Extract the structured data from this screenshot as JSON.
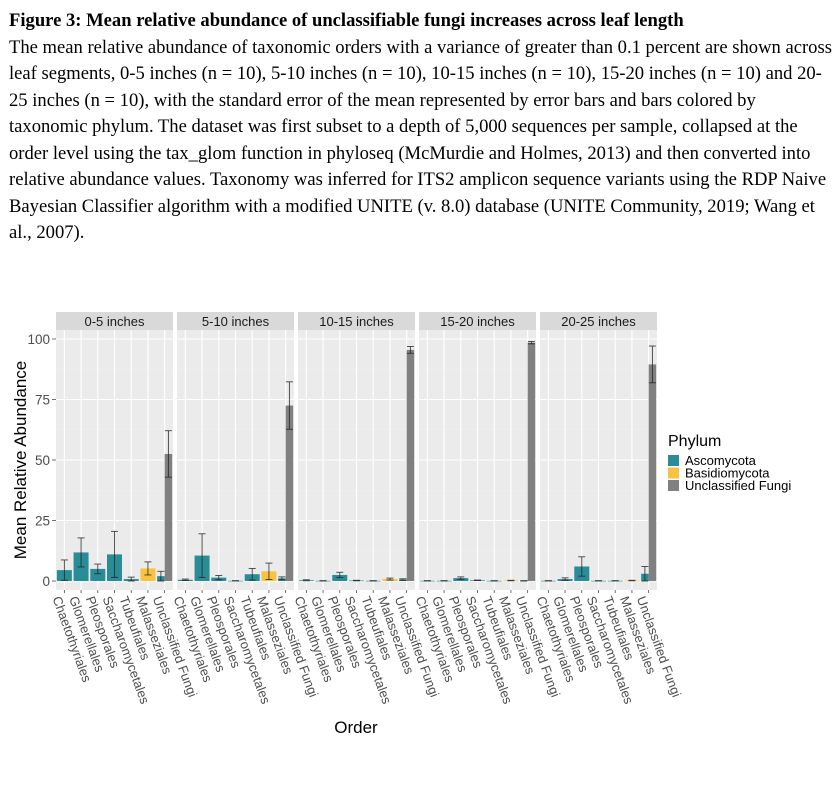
{
  "caption": {
    "title": "Figure 3: Mean relative abundance of unclassifiable fungi increases across leaf length",
    "body": "The mean relative abundance of taxonomic orders with a variance of greater than 0.1 percent are shown across leaf segments, 0-5 inches (n = 10), 5-10 inches (n = 10), 10-15 inches (n = 10), 15-20 inches (n = 10) and 20-25 inches (n = 10), with the standard error of the mean represented by error bars and bars colored by taxonomic phylum. The dataset was first subset to a depth of 5,000 sequences per sample, collapsed at the order level using the tax_glom function in phyloseq (McMurdie and Holmes, 2013) and then converted into relative abundance values. Taxonomy was inferred for ITS2 amplicon sequence variants using the RDP Naive Bayesian Classifier algorithm with a modified UNITE (v. 8.0) database (UNITE Community, 2019; Wang et al., 2007)."
  },
  "chart_data": {
    "type": "bar",
    "title": "",
    "xlabel": "Order",
    "ylabel": "Mean Relative Abundance",
    "ylim": [
      -3,
      103
    ],
    "yticks": [
      0,
      25,
      50,
      75,
      100
    ],
    "grid": true,
    "legend": {
      "title": "Phylum",
      "placement": "right",
      "entries": [
        {
          "name": "Ascomycota",
          "color": "#2a8c96"
        },
        {
          "name": "Basidiomycota",
          "color": "#f8c242"
        },
        {
          "name": "Unclassified Fungi",
          "color": "#808080"
        }
      ]
    },
    "categories": [
      "Chaetothyriales",
      "Glomerellales",
      "Pleosporales",
      "Saccharomycetales",
      "Tubeufiales",
      "Malasseziales",
      "Unclassified Fungi"
    ],
    "facets": [
      {
        "label": "0-5 inches",
        "bars": [
          {
            "category": "Chaetothyriales",
            "phylum": "Ascomycota",
            "mean": 4.5,
            "se": 4.2
          },
          {
            "category": "Glomerellales",
            "phylum": "Ascomycota",
            "mean": 11.8,
            "se": 6.0
          },
          {
            "category": "Pleosporales",
            "phylum": "Ascomycota",
            "mean": 5.0,
            "se": 2.0
          },
          {
            "category": "Saccharomycetales",
            "phylum": "Ascomycota",
            "mean": 11.0,
            "se": 9.5
          },
          {
            "category": "Tubeufiales",
            "phylum": "Ascomycota",
            "mean": 0.8,
            "se": 0.8
          },
          {
            "category": "Malasseziales",
            "phylum": "Basidiomycota",
            "mean": 5.2,
            "se": 2.7
          },
          {
            "category": "Unclassified Fungi",
            "phylum": "Ascomycota",
            "mean": 2.0,
            "se": 2.0
          },
          {
            "category": "Unclassified Fungi",
            "phylum": "Unclassified Fungi",
            "mean": 52.5,
            "se": 9.6
          }
        ]
      },
      {
        "label": "5-10 inches",
        "bars": [
          {
            "category": "Chaetothyriales",
            "phylum": "Ascomycota",
            "mean": 0.5,
            "se": 0.3
          },
          {
            "category": "Glomerellales",
            "phylum": "Ascomycota",
            "mean": 10.5,
            "se": 9.0
          },
          {
            "category": "Pleosporales",
            "phylum": "Ascomycota",
            "mean": 1.4,
            "se": 0.9
          },
          {
            "category": "Saccharomycetales",
            "phylum": "Ascomycota",
            "mean": 0.1,
            "se": 0.05
          },
          {
            "category": "Tubeufiales",
            "phylum": "Ascomycota",
            "mean": 2.8,
            "se": 2.4
          },
          {
            "category": "Malasseziales",
            "phylum": "Basidiomycota",
            "mean": 4.0,
            "se": 3.4
          },
          {
            "category": "Unclassified Fungi",
            "phylum": "Ascomycota",
            "mean": 1.1,
            "se": 0.6
          },
          {
            "category": "Unclassified Fungi",
            "phylum": "Unclassified Fungi",
            "mean": 72.5,
            "se": 9.8
          }
        ]
      },
      {
        "label": "10-15 inches",
        "bars": [
          {
            "category": "Chaetothyriales",
            "phylum": "Ascomycota",
            "mean": 0.3,
            "se": 0.2
          },
          {
            "category": "Glomerellales",
            "phylum": "Ascomycota",
            "mean": 0.1,
            "se": 0.05
          },
          {
            "category": "Pleosporales",
            "phylum": "Ascomycota",
            "mean": 2.5,
            "se": 1.1
          },
          {
            "category": "Saccharomycetales",
            "phylum": "Ascomycota",
            "mean": 0.2,
            "se": 0.1
          },
          {
            "category": "Tubeufiales",
            "phylum": "Ascomycota",
            "mean": 0.1,
            "se": 0.05
          },
          {
            "category": "Malasseziales",
            "phylum": "Basidiomycota",
            "mean": 0.8,
            "se": 0.4
          },
          {
            "category": "Unclassified Fungi",
            "phylum": "Ascomycota",
            "mean": 0.6,
            "se": 0.3
          },
          {
            "category": "Unclassified Fungi",
            "phylum": "Unclassified Fungi",
            "mean": 95.5,
            "se": 1.4
          }
        ]
      },
      {
        "label": "15-20 inches",
        "bars": [
          {
            "category": "Chaetothyriales",
            "phylum": "Ascomycota",
            "mean": 0.1,
            "se": 0.05
          },
          {
            "category": "Glomerellales",
            "phylum": "Ascomycota",
            "mean": 0.1,
            "se": 0.05
          },
          {
            "category": "Pleosporales",
            "phylum": "Ascomycota",
            "mean": 1.2,
            "se": 0.5
          },
          {
            "category": "Saccharomycetales",
            "phylum": "Ascomycota",
            "mean": 0.3,
            "se": 0.1
          },
          {
            "category": "Tubeufiales",
            "phylum": "Ascomycota",
            "mean": 0.1,
            "se": 0.05
          },
          {
            "category": "Malasseziales",
            "phylum": "Basidiomycota",
            "mean": 0.2,
            "se": 0.1
          },
          {
            "category": "Unclassified Fungi",
            "phylum": "Ascomycota",
            "mean": 0.1,
            "se": 0.05
          },
          {
            "category": "Unclassified Fungi",
            "phylum": "Unclassified Fungi",
            "mean": 98.5,
            "se": 0.5
          }
        ]
      },
      {
        "label": "20-25 inches",
        "bars": [
          {
            "category": "Chaetothyriales",
            "phylum": "Ascomycota",
            "mean": 0.1,
            "se": 0.05
          },
          {
            "category": "Glomerellales",
            "phylum": "Ascomycota",
            "mean": 0.8,
            "se": 0.5
          },
          {
            "category": "Pleosporales",
            "phylum": "Ascomycota",
            "mean": 6.0,
            "se": 4.0
          },
          {
            "category": "Saccharomycetales",
            "phylum": "Ascomycota",
            "mean": 0.1,
            "se": 0.05
          },
          {
            "category": "Tubeufiales",
            "phylum": "Ascomycota",
            "mean": 0.1,
            "se": 0.05
          },
          {
            "category": "Malasseziales",
            "phylum": "Basidiomycota",
            "mean": 0.2,
            "se": 0.1
          },
          {
            "category": "Unclassified Fungi",
            "phylum": "Ascomycota",
            "mean": 3.0,
            "se": 3.0
          },
          {
            "category": "Unclassified Fungi",
            "phylum": "Unclassified Fungi",
            "mean": 89.5,
            "se": 7.6
          }
        ]
      }
    ]
  }
}
